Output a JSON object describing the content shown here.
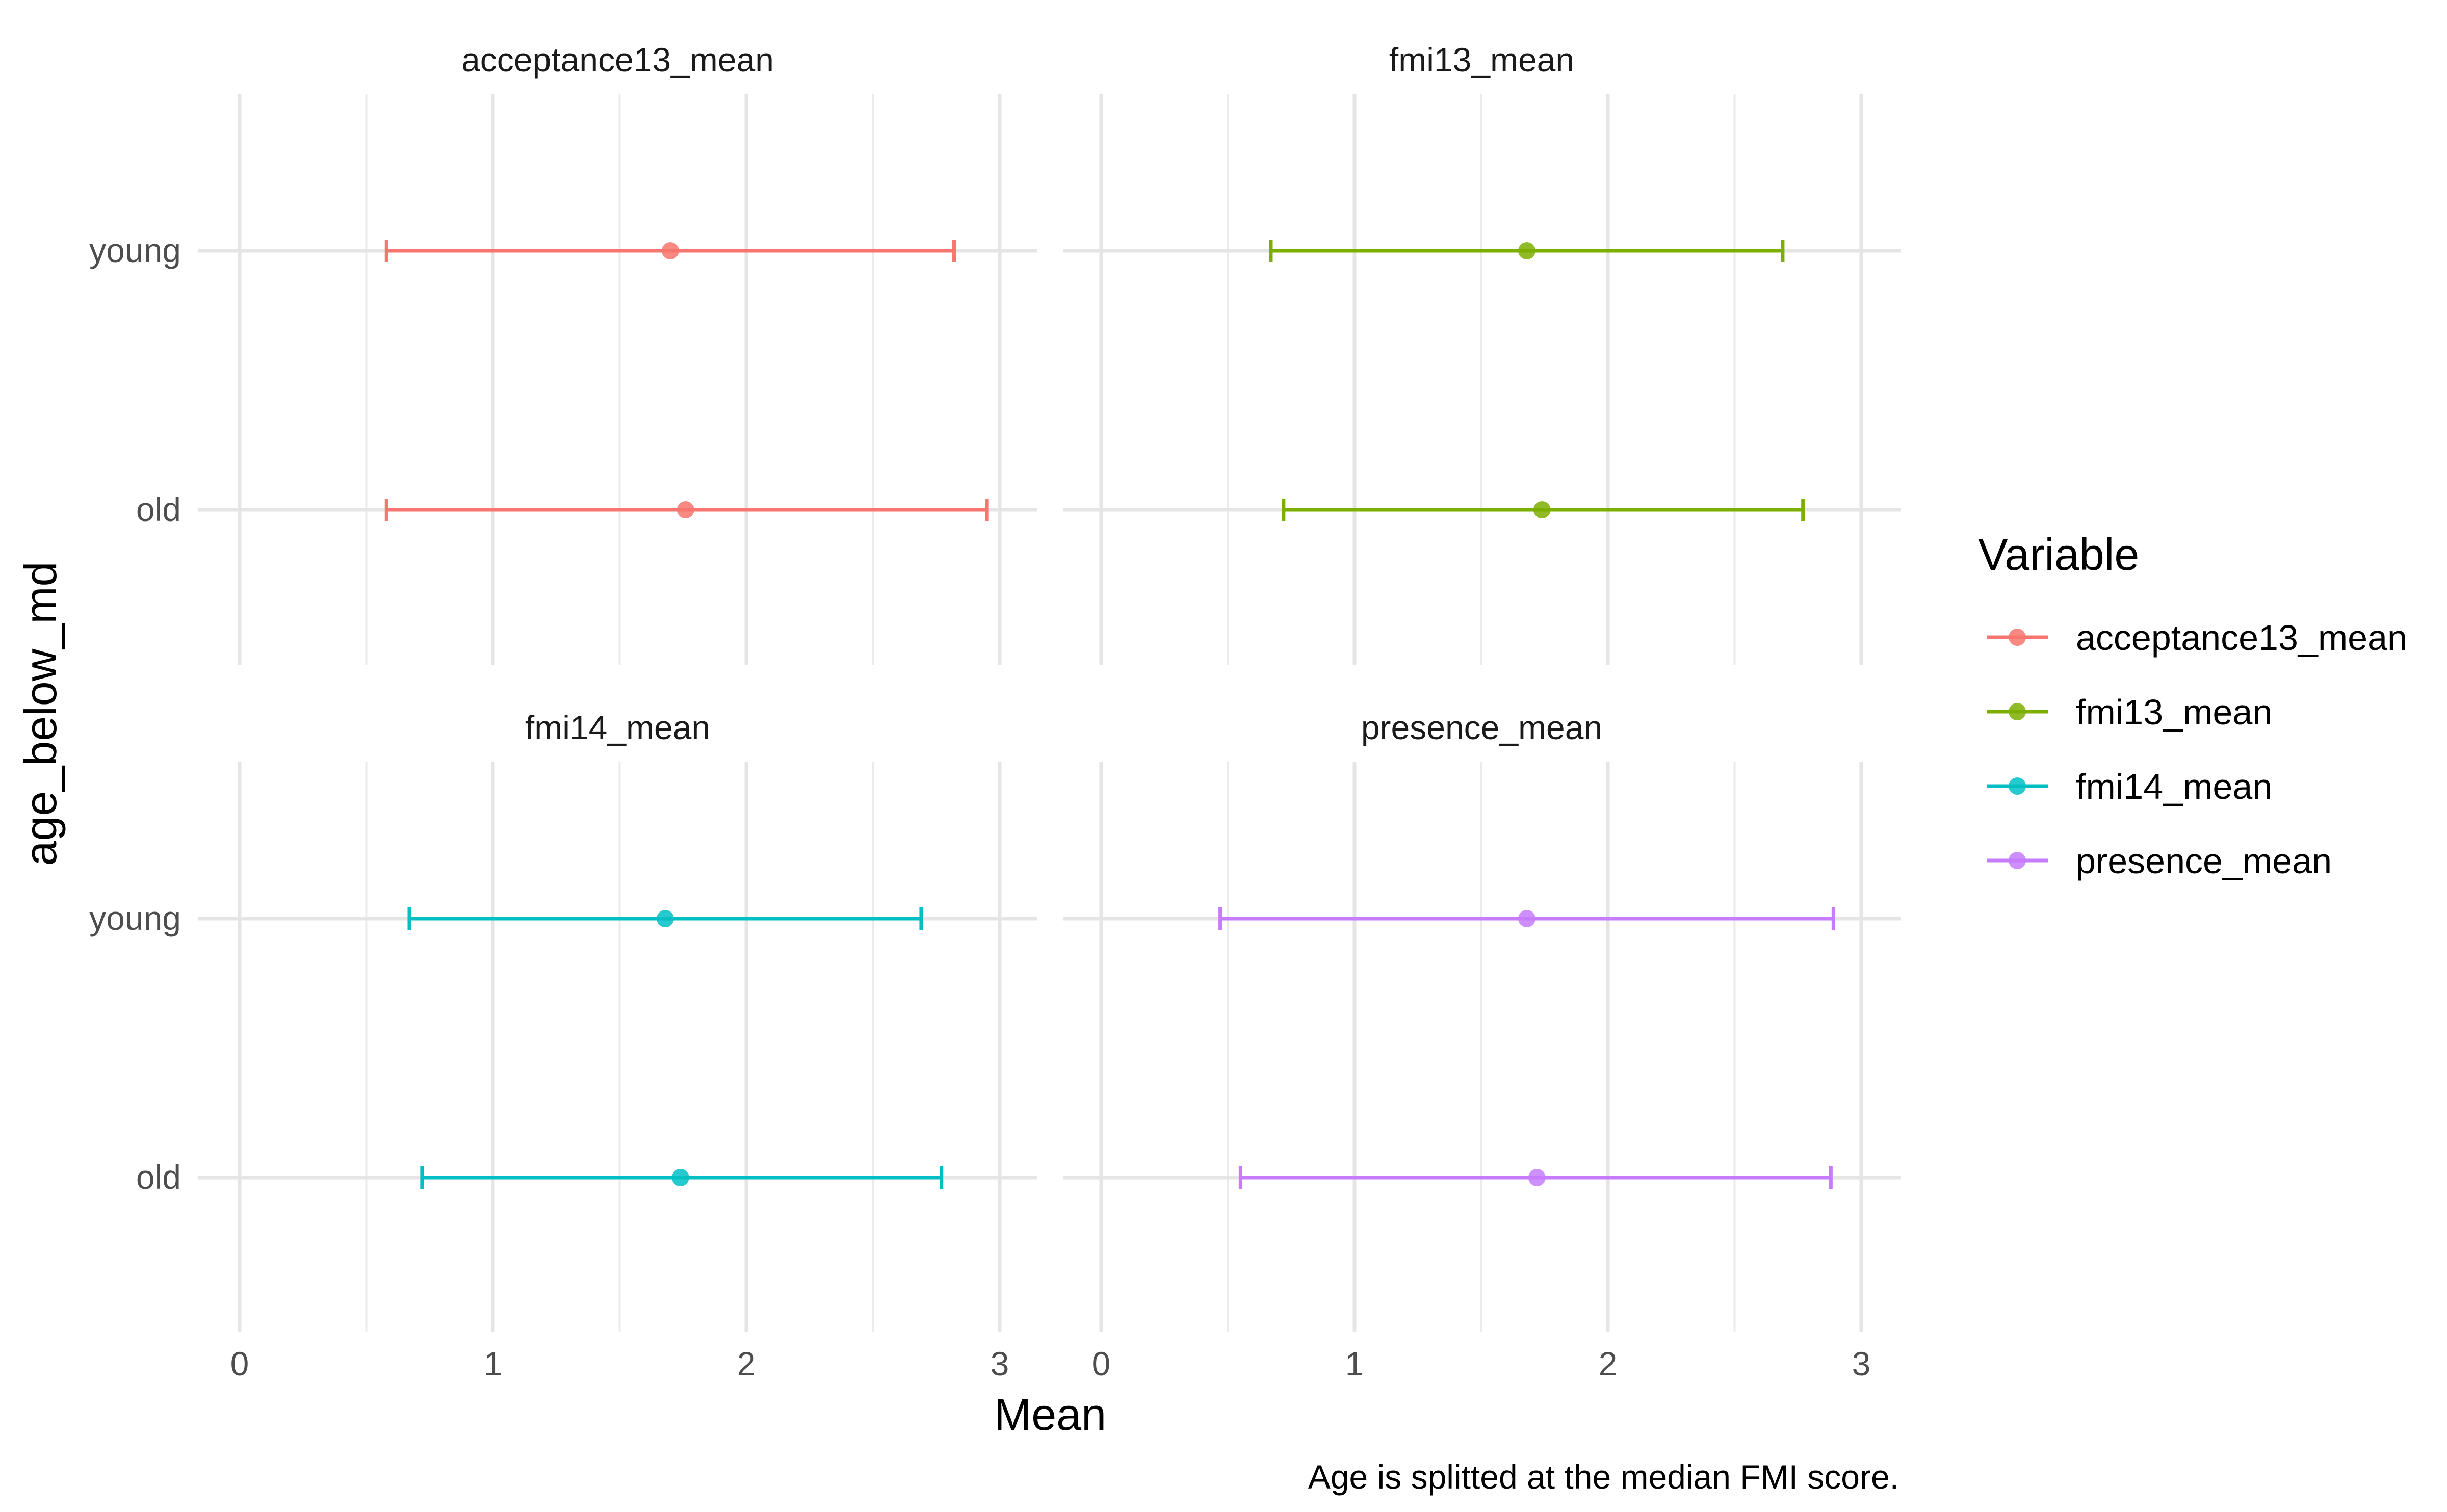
{
  "chart_data": {
    "type": "errorbar",
    "xlabel": "Mean",
    "ylabel": "age_below_md",
    "caption": "Age is splitted at the median FMI score.",
    "xlim": [
      0,
      3
    ],
    "x_ticks": [
      "0",
      "1",
      "2",
      "3"
    ],
    "categories": [
      "young",
      "old"
    ],
    "grid": true,
    "legend": {
      "title": "Variable",
      "position": "right",
      "entries": [
        "acceptance13_mean",
        "fmi13_mean",
        "fmi14_mean",
        "presence_mean"
      ]
    },
    "panels": [
      {
        "title": "acceptance13_mean",
        "color": "#F8766D",
        "points": [
          {
            "category": "young",
            "mean": 1.7,
            "lower": 0.58,
            "upper": 2.82
          },
          {
            "category": "old",
            "mean": 1.76,
            "lower": 0.58,
            "upper": 2.95
          }
        ]
      },
      {
        "title": "fmi13_mean",
        "color": "#7CAE00",
        "points": [
          {
            "category": "young",
            "mean": 1.68,
            "lower": 0.67,
            "upper": 2.69
          },
          {
            "category": "old",
            "mean": 1.74,
            "lower": 0.72,
            "upper": 2.77
          }
        ]
      },
      {
        "title": "fmi14_mean",
        "color": "#00BFC4",
        "points": [
          {
            "category": "young",
            "mean": 1.68,
            "lower": 0.67,
            "upper": 2.69
          },
          {
            "category": "old",
            "mean": 1.74,
            "lower": 0.72,
            "upper": 2.77
          }
        ]
      },
      {
        "title": "presence_mean",
        "color": "#C77CFF",
        "points": [
          {
            "category": "young",
            "mean": 1.68,
            "lower": 0.47,
            "upper": 2.89
          },
          {
            "category": "old",
            "mean": 1.72,
            "lower": 0.55,
            "upper": 2.88
          }
        ]
      }
    ]
  }
}
